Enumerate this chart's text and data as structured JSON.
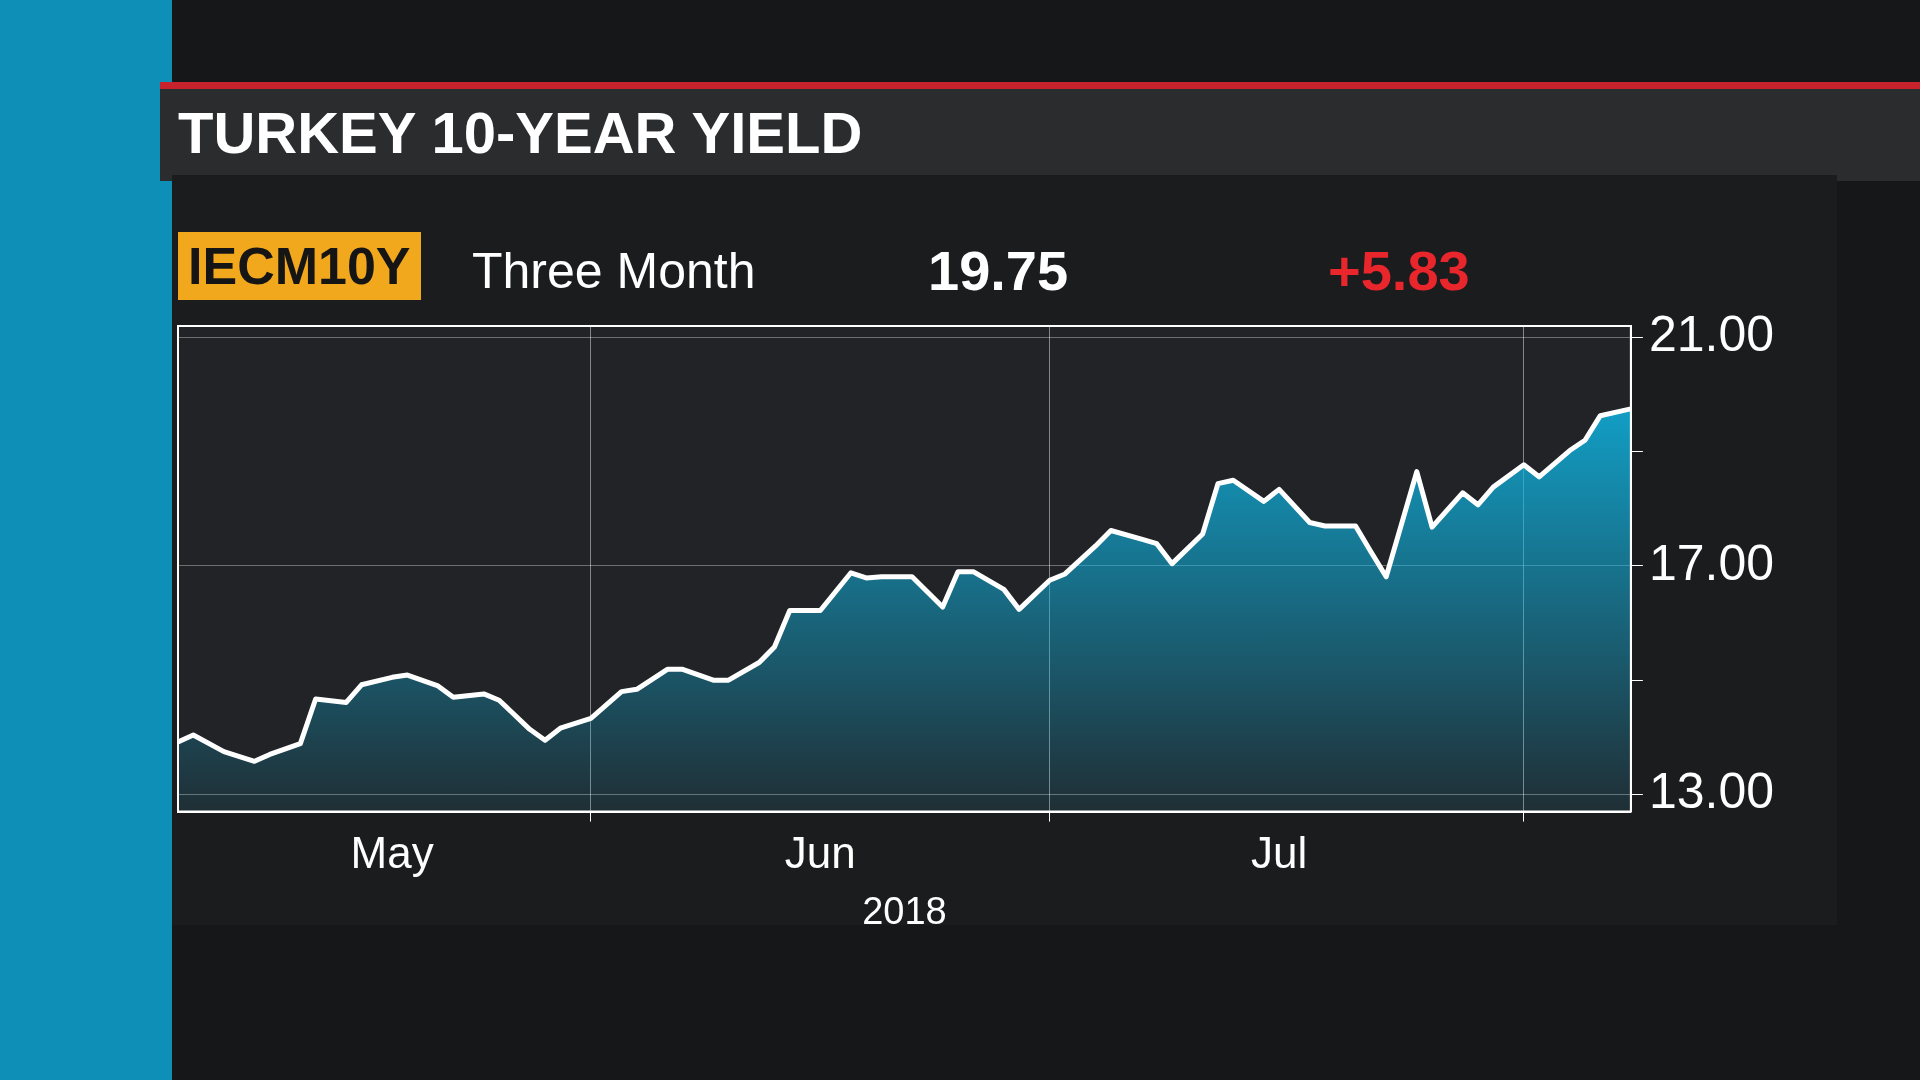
{
  "chart_data": {
    "type": "area",
    "title": "TURKEY 10-YEAR YIELD",
    "xlabel": "2018",
    "annotations": [
      "IECM10Y",
      "Three Month",
      "19.75",
      "+5.83"
    ],
    "x": [
      "2018-05-05",
      "2018-05-06",
      "2018-05-08",
      "2018-05-10",
      "2018-05-11",
      "2018-05-13",
      "2018-05-14",
      "2018-05-16",
      "2018-05-17",
      "2018-05-19",
      "2018-05-20",
      "2018-05-22",
      "2018-05-23",
      "2018-05-25",
      "2018-05-26",
      "2018-05-28",
      "2018-05-29",
      "2018-05-30",
      "2018-06-01",
      "2018-06-03",
      "2018-06-04",
      "2018-06-06",
      "2018-06-07",
      "2018-06-09",
      "2018-06-10",
      "2018-06-12",
      "2018-06-13",
      "2018-06-14",
      "2018-06-16",
      "2018-06-18",
      "2018-06-19",
      "2018-06-20",
      "2018-06-22",
      "2018-06-24",
      "2018-06-25",
      "2018-06-26",
      "2018-06-28",
      "2018-06-29",
      "2018-07-01",
      "2018-07-02",
      "2018-07-04",
      "2018-07-05",
      "2018-07-07",
      "2018-07-08",
      "2018-07-09",
      "2018-07-11",
      "2018-07-12",
      "2018-07-13",
      "2018-07-15",
      "2018-07-16",
      "2018-07-18",
      "2018-07-19",
      "2018-07-21",
      "2018-07-22",
      "2018-07-23",
      "2018-07-25",
      "2018-07-26",
      "2018-07-28",
      "2018-07-29",
      "2018-07-30",
      "2018-08-01",
      "2018-08-02",
      "2018-08-04",
      "2018-08-05",
      "2018-08-06",
      "2018-08-08"
    ],
    "values": [
      13.92,
      14.04,
      13.75,
      13.58,
      13.7,
      13.89,
      14.67,
      14.61,
      14.92,
      15.05,
      15.09,
      14.9,
      14.7,
      14.76,
      14.65,
      14.14,
      13.95,
      14.16,
      14.33,
      14.8,
      14.84,
      15.19,
      15.19,
      15.0,
      15.0,
      15.31,
      15.58,
      16.22,
      16.22,
      16.88,
      16.79,
      16.81,
      16.81,
      16.28,
      16.9,
      16.9,
      16.59,
      16.24,
      16.75,
      16.86,
      17.35,
      17.62,
      17.47,
      17.39,
      17.04,
      17.56,
      18.44,
      18.5,
      18.13,
      18.34,
      17.76,
      17.7,
      17.7,
      17.25,
      16.81,
      18.65,
      17.68,
      18.28,
      18.07,
      18.38,
      18.77,
      18.56,
      19.02,
      19.2,
      19.63,
      19.75
    ],
    "color": "#0fb4e2",
    "xlim": [
      "2018-05-05",
      "2018-08-08"
    ],
    "xticks": [
      {
        "value": "2018-05-19",
        "label": "May"
      },
      {
        "value": "2018-06-01",
        "label": null
      },
      {
        "value": "2018-06-16",
        "label": "Jun"
      },
      {
        "value": "2018-07-01",
        "label": null
      },
      {
        "value": "2018-07-16",
        "label": "Jul"
      },
      {
        "value": "2018-08-01",
        "label": null
      }
    ],
    "ylim": [
      12.7,
      21.2
    ],
    "yticks": [
      {
        "value": 13,
        "label": "13.00"
      },
      {
        "value": 15,
        "label": null
      },
      {
        "value": 17,
        "label": "17.00"
      },
      {
        "value": 19,
        "label": null
      },
      {
        "value": 21,
        "label": "21.00"
      }
    ],
    "grid": true
  }
}
